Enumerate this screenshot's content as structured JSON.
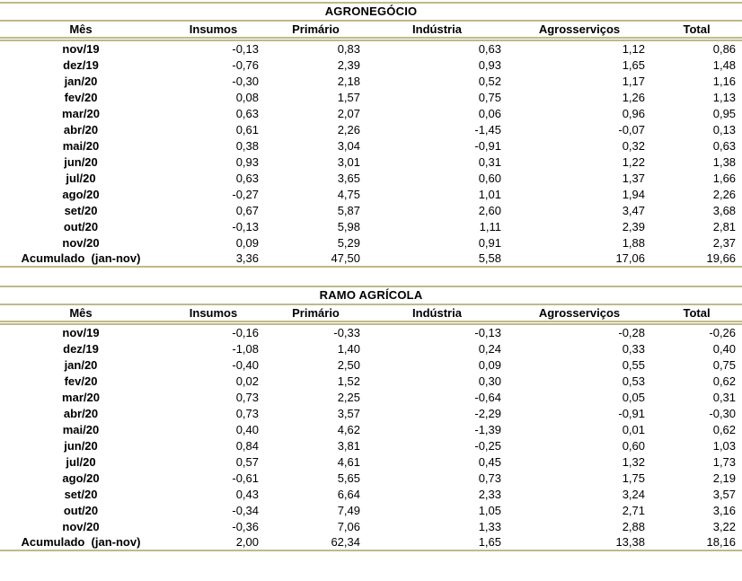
{
  "page": {
    "background": "#ffffff",
    "rule_color": "#bfb98a",
    "text_color": "#000000"
  },
  "tables": [
    {
      "title": "AGRONEGÓCIO",
      "columns": [
        "Mês",
        "Insumos",
        "Primário",
        "Indústria",
        "Agrosserviços",
        "Total"
      ],
      "rows": [
        {
          "month": "nov/19",
          "values": [
            "-0,13",
            "0,83",
            "0,63",
            "1,12",
            "0,86"
          ]
        },
        {
          "month": "dez/19",
          "values": [
            "-0,76",
            "2,39",
            "0,93",
            "1,65",
            "1,48"
          ]
        },
        {
          "month": "jan/20",
          "values": [
            "-0,30",
            "2,18",
            "0,52",
            "1,17",
            "1,16"
          ]
        },
        {
          "month": "fev/20",
          "values": [
            "0,08",
            "1,57",
            "0,75",
            "1,26",
            "1,13"
          ]
        },
        {
          "month": "mar/20",
          "values": [
            "0,63",
            "2,07",
            "0,06",
            "0,96",
            "0,95"
          ]
        },
        {
          "month": "abr/20",
          "values": [
            "0,61",
            "2,26",
            "-1,45",
            "-0,07",
            "0,13"
          ]
        },
        {
          "month": "mai/20",
          "values": [
            "0,38",
            "3,04",
            "-0,91",
            "0,32",
            "0,63"
          ]
        },
        {
          "month": "jun/20",
          "values": [
            "0,93",
            "3,01",
            "0,31",
            "1,22",
            "1,38"
          ]
        },
        {
          "month": "jul/20",
          "values": [
            "0,63",
            "3,65",
            "0,60",
            "1,37",
            "1,66"
          ]
        },
        {
          "month": "ago/20",
          "values": [
            "-0,27",
            "4,75",
            "1,01",
            "1,94",
            "2,26"
          ]
        },
        {
          "month": "set/20",
          "values": [
            "0,67",
            "5,87",
            "2,60",
            "3,47",
            "3,68"
          ]
        },
        {
          "month": "out/20",
          "values": [
            "-0,13",
            "5,98",
            "1,11",
            "2,39",
            "2,81"
          ]
        },
        {
          "month": "nov/20",
          "values": [
            "0,09",
            "5,29",
            "0,91",
            "1,88",
            "2,37"
          ]
        },
        {
          "month": "Acumulado  (jan-nov)",
          "values": [
            "3,36",
            "47,50",
            "5,58",
            "17,06",
            "19,66"
          ]
        }
      ]
    },
    {
      "title": "RAMO AGRÍCOLA",
      "columns": [
        "Mês",
        "Insumos",
        "Primário",
        "Indústria",
        "Agrosserviços",
        "Total"
      ],
      "rows": [
        {
          "month": "nov/19",
          "values": [
            "-0,16",
            "-0,33",
            "-0,13",
            "-0,28",
            "-0,26"
          ]
        },
        {
          "month": "dez/19",
          "values": [
            "-1,08",
            "1,40",
            "0,24",
            "0,33",
            "0,40"
          ]
        },
        {
          "month": "jan/20",
          "values": [
            "-0,40",
            "2,50",
            "0,09",
            "0,55",
            "0,75"
          ]
        },
        {
          "month": "fev/20",
          "values": [
            "0,02",
            "1,52",
            "0,30",
            "0,53",
            "0,62"
          ]
        },
        {
          "month": "mar/20",
          "values": [
            "0,73",
            "2,25",
            "-0,64",
            "0,05",
            "0,31"
          ]
        },
        {
          "month": "abr/20",
          "values": [
            "0,73",
            "3,57",
            "-2,29",
            "-0,91",
            "-0,30"
          ]
        },
        {
          "month": "mai/20",
          "values": [
            "0,40",
            "4,62",
            "-1,39",
            "0,01",
            "0,62"
          ]
        },
        {
          "month": "jun/20",
          "values": [
            "0,84",
            "3,81",
            "-0,25",
            "0,60",
            "1,03"
          ]
        },
        {
          "month": "jul/20",
          "values": [
            "0,57",
            "4,61",
            "0,45",
            "1,32",
            "1,73"
          ]
        },
        {
          "month": "ago/20",
          "values": [
            "-0,61",
            "5,65",
            "0,73",
            "1,75",
            "2,19"
          ]
        },
        {
          "month": "set/20",
          "values": [
            "0,43",
            "6,64",
            "2,33",
            "3,24",
            "3,57"
          ]
        },
        {
          "month": "out/20",
          "values": [
            "-0,34",
            "7,49",
            "1,05",
            "2,71",
            "3,16"
          ]
        },
        {
          "month": "nov/20",
          "values": [
            "-0,36",
            "7,06",
            "1,33",
            "2,88",
            "3,22"
          ]
        },
        {
          "month": "Acumulado  (jan-nov)",
          "values": [
            "2,00",
            "62,34",
            "1,65",
            "13,38",
            "18,16"
          ]
        }
      ]
    }
  ]
}
